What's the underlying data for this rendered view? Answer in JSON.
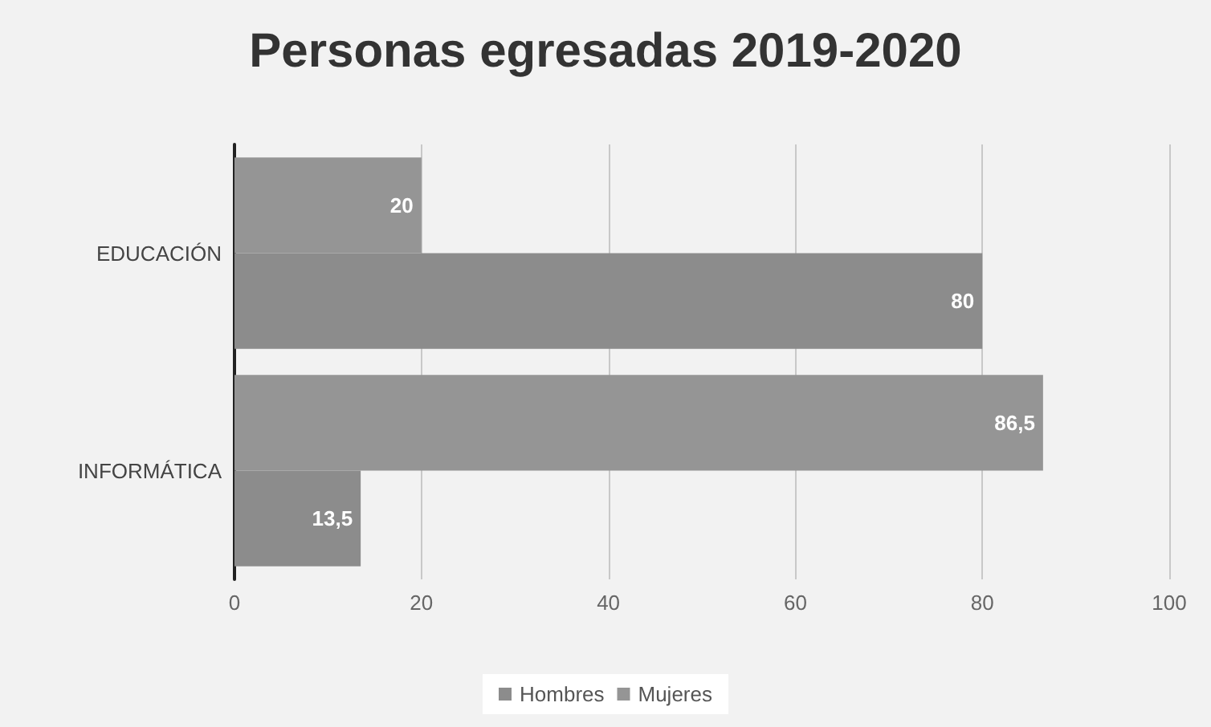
{
  "chart_data": {
    "type": "bar",
    "orientation": "horizontal",
    "title": "Personas egresadas 2019-2020",
    "categories": [
      "EDUCACIÓN",
      "INFORMÁTICA"
    ],
    "series": [
      {
        "name": "Hombres",
        "color": "#8c8c8c",
        "values": [
          80,
          13.5
        ],
        "value_labels": [
          "80",
          "13,5"
        ]
      },
      {
        "name": "Mujeres",
        "color": "#959595",
        "values": [
          20,
          86.5
        ],
        "value_labels": [
          "20",
          "86,5"
        ]
      }
    ],
    "xlim": [
      0,
      100
    ],
    "xticks": [
      0,
      20,
      40,
      60,
      80,
      100
    ],
    "grid": "x",
    "legend": "bottom"
  }
}
